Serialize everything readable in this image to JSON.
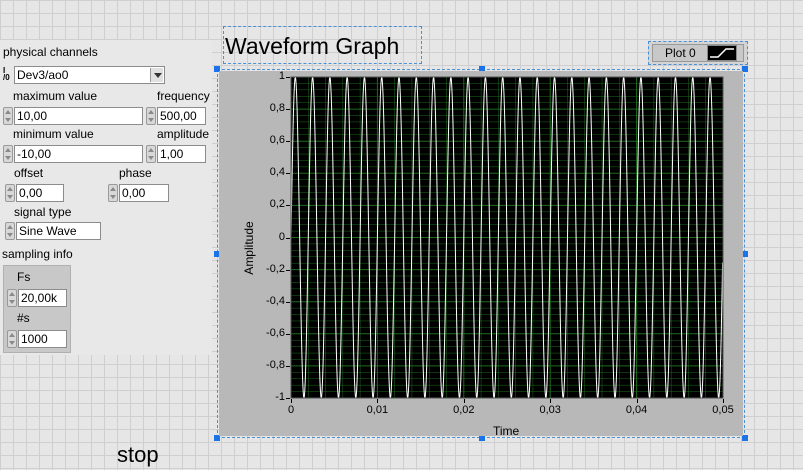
{
  "channels": {
    "label": "physical channels",
    "value": "Dev3/ao0",
    "io_icon": "I/O"
  },
  "max_value": {
    "label": "maximum value",
    "value": "10,00"
  },
  "min_value": {
    "label": "minimum value",
    "value": "-10,00"
  },
  "frequency": {
    "label": "frequency",
    "value": "500,00"
  },
  "amplitude": {
    "label": "amplitude",
    "value": "1,00"
  },
  "offset": {
    "label": "offset",
    "value": "0,00"
  },
  "phase": {
    "label": "phase",
    "value": "0,00"
  },
  "signal_type": {
    "label": "signal type",
    "value": "Sine Wave"
  },
  "sampling": {
    "label": "sampling info",
    "fs_label": "Fs",
    "fs_value": "20,00k",
    "ns_label": "#s",
    "ns_value": "1000"
  },
  "graph": {
    "title": "Waveform Graph",
    "legend": "Plot 0"
  },
  "stop": {
    "label": "stop"
  },
  "chart_data": {
    "type": "line",
    "title": "Waveform Graph",
    "xlabel": "Time",
    "ylabel": "Amplitude",
    "xlim": [
      0,
      0.05
    ],
    "ylim": [
      -1,
      1
    ],
    "x_ticks": [
      "0",
      "0,01",
      "0,02",
      "0,03",
      "0,04",
      "0,05"
    ],
    "y_ticks": [
      "1",
      "0,8",
      "0,6",
      "0,4",
      "0,2",
      "0",
      "-0,2",
      "-0,4",
      "-0,6",
      "-0,8",
      "-1"
    ],
    "series": [
      {
        "name": "Plot 0",
        "function": "sine",
        "frequency_hz": 500,
        "amplitude": 1,
        "offset": 0,
        "sample_rate": 20000,
        "samples": 1000
      }
    ],
    "grid": true,
    "colors": {
      "plot_bg": "#000000",
      "line": "#ffffff",
      "grid": "#1e6b1e",
      "frame": "#a9a9a9"
    }
  }
}
